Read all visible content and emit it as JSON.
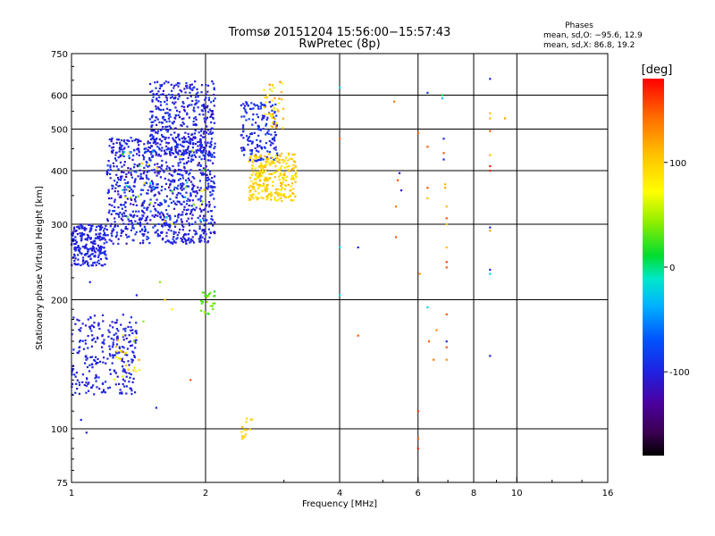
{
  "chart_data": {
    "type": "scatter",
    "title": "Tromsø 20151204 15:56:00−15:57:43",
    "subtitle": "RwPretec (8p)",
    "xlabel": "Frequency [MHz]",
    "ylabel": "Stationary phase Virtual Height [km]",
    "x_scale": "log",
    "y_scale": "log",
    "xlim": [
      1,
      16
    ],
    "ylim": [
      75,
      750
    ],
    "x_ticks": [
      1,
      2,
      4,
      6,
      8,
      10,
      16
    ],
    "y_ticks": [
      75,
      100,
      200,
      300,
      400,
      500,
      600,
      750
    ],
    "grid": true,
    "phase_stats": {
      "title": "Phases",
      "line_o": "mean, sd,O: −95.6, 12.9",
      "line_x": "mean, sd,X:  86.8, 19.2"
    },
    "colorbar": {
      "label": "[deg]",
      "range": [
        -180,
        180
      ],
      "ticks": [
        100,
        0,
        -100
      ]
    },
    "clusters": [
      {
        "name": "low_o_main",
        "fmin": 1.0,
        "fmax": 1.4,
        "hmin": 120,
        "hmax": 185,
        "n": 260,
        "phase": [
          -110,
          -90
        ]
      },
      {
        "name": "low_o_edge",
        "fmin": 1.25,
        "fmax": 1.45,
        "hmin": 130,
        "hmax": 170,
        "n": 20,
        "phase": [
          60,
          120
        ]
      },
      {
        "name": "f_layer_bottom",
        "fmin": 1.0,
        "fmax": 1.2,
        "hmin": 240,
        "hmax": 300,
        "n": 230,
        "phase": [
          -110,
          -90
        ]
      },
      {
        "name": "f_layer_main",
        "fmin": 1.2,
        "fmax": 2.1,
        "hmin": 270,
        "hmax": 480,
        "n": 900,
        "phase": [
          -115,
          -85
        ]
      },
      {
        "name": "f_layer_top",
        "fmin": 1.5,
        "fmax": 2.1,
        "hmin": 430,
        "hmax": 650,
        "n": 380,
        "phase": [
          -115,
          -85
        ]
      },
      {
        "name": "f_layer_mixed",
        "fmin": 1.3,
        "fmax": 2.0,
        "hmin": 300,
        "hmax": 450,
        "n": 70,
        "phase": [
          -150,
          110
        ]
      },
      {
        "name": "x_trace_blue",
        "fmin": 2.4,
        "fmax": 2.9,
        "hmin": 420,
        "hmax": 580,
        "n": 160,
        "phase": [
          -110,
          -80
        ]
      },
      {
        "name": "x_trace_yellow",
        "fmin": 2.5,
        "fmax": 3.2,
        "hmin": 340,
        "hmax": 440,
        "n": 280,
        "phase": [
          80,
          115
        ]
      },
      {
        "name": "x_trace_upper",
        "fmin": 2.7,
        "fmax": 3.0,
        "hmin": 500,
        "hmax": 650,
        "n": 40,
        "phase": [
          60,
          130
        ]
      },
      {
        "name": "green_patch",
        "fmin": 1.95,
        "fmax": 2.1,
        "hmin": 185,
        "hmax": 210,
        "n": 25,
        "phase": [
          15,
          50
        ]
      },
      {
        "name": "low_yellow",
        "fmin": 2.4,
        "fmax": 2.55,
        "hmin": 93,
        "hmax": 106,
        "n": 14,
        "phase": [
          90,
          110
        ]
      }
    ],
    "points": [
      [
        1.05,
        105,
        -100
      ],
      [
        1.08,
        98,
        -105
      ],
      [
        1.32,
        150,
        100
      ],
      [
        1.38,
        160,
        40
      ],
      [
        1.4,
        205,
        -100
      ],
      [
        1.45,
        178,
        40
      ],
      [
        1.58,
        220,
        40
      ],
      [
        1.62,
        200,
        100
      ],
      [
        1.68,
        190,
        80
      ],
      [
        1.85,
        130,
        150
      ],
      [
        1.55,
        112,
        -100
      ],
      [
        1.1,
        220,
        -100
      ],
      [
        4.0,
        625,
        -20
      ],
      [
        4.0,
        475,
        150
      ],
      [
        4.0,
        265,
        -20
      ],
      [
        4.0,
        205,
        -20
      ],
      [
        4.4,
        265,
        -100
      ],
      [
        4.4,
        165,
        150
      ],
      [
        5.3,
        580,
        140
      ],
      [
        5.35,
        330,
        140
      ],
      [
        5.35,
        280,
        150
      ],
      [
        5.4,
        380,
        150
      ],
      [
        5.45,
        395,
        -100
      ],
      [
        5.5,
        360,
        -110
      ],
      [
        6.0,
        490,
        150
      ],
      [
        6.05,
        230,
        130
      ],
      [
        6.0,
        110,
        160
      ],
      [
        6.0,
        95,
        150
      ],
      [
        6.0,
        90,
        170
      ],
      [
        6.3,
        608,
        -90
      ],
      [
        6.3,
        455,
        150
      ],
      [
        6.3,
        365,
        150
      ],
      [
        6.3,
        345,
        110
      ],
      [
        6.3,
        192,
        -20
      ],
      [
        6.35,
        160,
        150
      ],
      [
        6.5,
        145,
        140
      ],
      [
        6.6,
        170,
        130
      ],
      [
        6.8,
        600,
        10
      ],
      [
        6.8,
        590,
        -30
      ],
      [
        6.85,
        475,
        -100
      ],
      [
        6.85,
        440,
        150
      ],
      [
        6.85,
        425,
        -100
      ],
      [
        6.9,
        372,
        110
      ],
      [
        6.9,
        365,
        120
      ],
      [
        6.95,
        330,
        110
      ],
      [
        6.95,
        310,
        150
      ],
      [
        6.95,
        300,
        100
      ],
      [
        6.95,
        265,
        110
      ],
      [
        6.95,
        245,
        160
      ],
      [
        6.95,
        238,
        150
      ],
      [
        6.95,
        185,
        150
      ],
      [
        6.95,
        160,
        -100
      ],
      [
        6.95,
        155,
        150
      ],
      [
        6.95,
        145,
        130
      ],
      [
        8.7,
        655,
        -100
      ],
      [
        8.7,
        545,
        110
      ],
      [
        8.7,
        530,
        110
      ],
      [
        8.7,
        495,
        150
      ],
      [
        8.7,
        435,
        110
      ],
      [
        8.7,
        410,
        170
      ],
      [
        8.7,
        400,
        170
      ],
      [
        8.7,
        295,
        -100
      ],
      [
        8.7,
        290,
        120
      ],
      [
        8.7,
        235,
        -100
      ],
      [
        8.7,
        230,
        -20
      ],
      [
        8.7,
        148,
        -100
      ],
      [
        9.4,
        530,
        120
      ]
    ]
  }
}
